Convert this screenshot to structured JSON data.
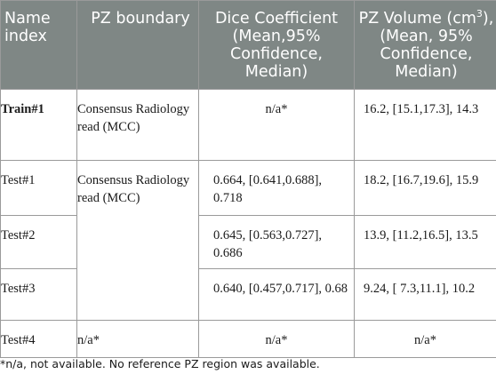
{
  "table": {
    "headers": {
      "name_index": "Name index",
      "pz_boundary": "PZ boundary",
      "dice": "Dice Coefficient (Mean,95% Confidence, Median)",
      "volume_pre": "PZ Volume (cm",
      "volume_sup": "3",
      "volume_post": "), (Mean, 95% Confidence, Median)"
    },
    "rows": [
      {
        "name": "Train#1",
        "pz_boundary": "Consensus Radiology read (MCC)",
        "dice": "n/a*",
        "volume": "16.2, [15.1,17.3], 14.3"
      },
      {
        "name": "Test#1",
        "pz_boundary": "Consensus Radiology read (MCC)",
        "dice": "0.664, [0.641,0.688], 0.718",
        "volume": "18.2, [16.7,19.6], 15.9"
      },
      {
        "name": "Test#2",
        "dice": "0.645, [0.563,0.727], 0.686",
        "volume": "13.9, [11.2,16.5], 13.5"
      },
      {
        "name": "Test#3",
        "dice": "0.640, [0.457,0.717], 0.68",
        "volume": "9.24, [ 7.3,11.1], 10.2"
      },
      {
        "name": "Test#4",
        "pz_boundary": "n/a*",
        "dice": "n/a*",
        "volume": "n/a*"
      }
    ]
  },
  "footnote": "*n/a, not available. No reference PZ region was available."
}
